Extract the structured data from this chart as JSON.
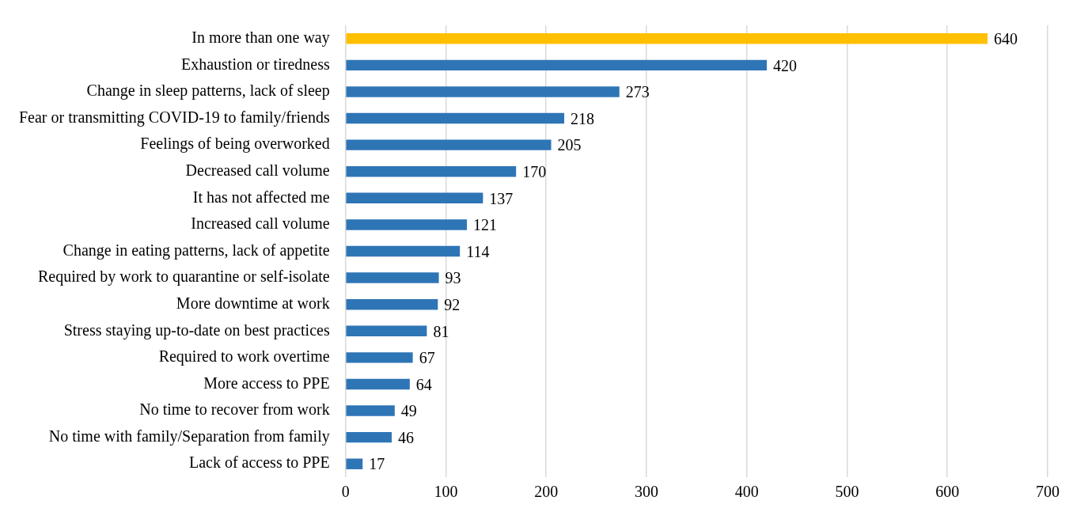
{
  "chart_data": {
    "type": "bar",
    "orientation": "horizontal",
    "categories": [
      "In more than one way",
      "Exhaustion or tiredness",
      "Change in sleep patterns, lack of sleep",
      "Fear or transmitting COVID-19 to family/friends",
      "Feelings of being overworked",
      "Decreased call volume",
      "It has not affected me",
      "Increased call volume",
      "Change in eating patterns, lack of appetite",
      "Required by work to quarantine or self-isolate",
      "More downtime at work",
      "Stress staying up-to-date on best practices",
      "Required to work overtime",
      "More access to PPE",
      "No time to recover from work",
      "No time with family/Separation from family",
      "Lack of access to PPE"
    ],
    "values": [
      640,
      420,
      273,
      218,
      205,
      170,
      137,
      121,
      114,
      93,
      92,
      81,
      67,
      64,
      49,
      46,
      17
    ],
    "colors": [
      "#ffc000",
      "#2e75b6",
      "#2e75b6",
      "#2e75b6",
      "#2e75b6",
      "#2e75b6",
      "#2e75b6",
      "#2e75b6",
      "#2e75b6",
      "#2e75b6",
      "#2e75b6",
      "#2e75b6",
      "#2e75b6",
      "#2e75b6",
      "#2e75b6",
      "#2e75b6",
      "#2e75b6"
    ],
    "xlim": [
      0,
      700
    ],
    "xticks": [
      0,
      100,
      200,
      300,
      400,
      500,
      600,
      700
    ],
    "grid": "x",
    "data_labels": true,
    "legend": false
  }
}
